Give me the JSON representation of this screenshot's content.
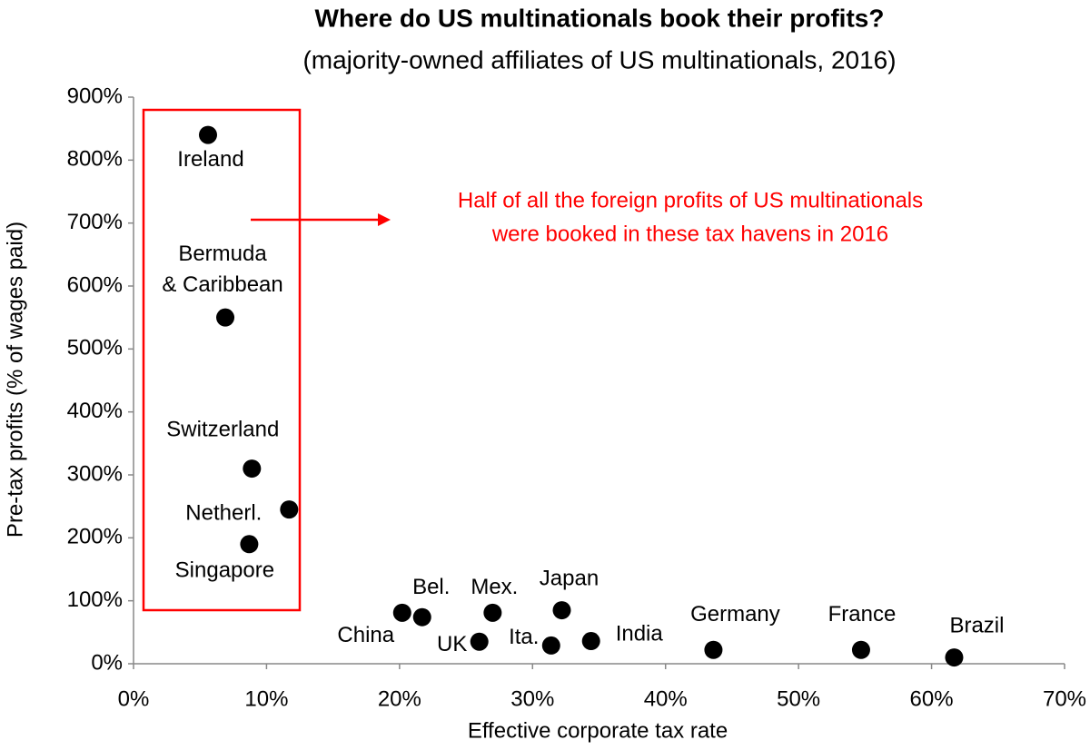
{
  "chart_data": {
    "type": "scatter",
    "title": "Where do US multinationals book their profits?",
    "subtitle": "(majority-owned affiliates of US multinationals, 2016)",
    "xlabel": "Effective corporate tax rate",
    "ylabel": "Pre-tax profits (% of wages paid)",
    "annotation": [
      "Half of all the foreign profits of US multinationals",
      "were booked in these tax havens in 2016"
    ],
    "annotation_color": "#ff0000",
    "color": "#000000",
    "xlim": [
      0,
      70
    ],
    "xticks": [
      {
        "value": 0,
        "label": "0%"
      },
      {
        "value": 10,
        "label": "10%"
      },
      {
        "value": 20,
        "label": "20%"
      },
      {
        "value": 30,
        "label": "30%"
      },
      {
        "value": 40,
        "label": "40%"
      },
      {
        "value": 50,
        "label": "50%"
      },
      {
        "value": 60,
        "label": "60%"
      },
      {
        "value": 70,
        "label": "70%"
      }
    ],
    "ylim": [
      0,
      900
    ],
    "yticks": [
      {
        "value": 0,
        "label": "0%"
      },
      {
        "value": 100,
        "label": "100%"
      },
      {
        "value": 200,
        "label": "200%"
      },
      {
        "value": 300,
        "label": "300%"
      },
      {
        "value": 400,
        "label": "400%"
      },
      {
        "value": 500,
        "label": "500%"
      },
      {
        "value": 600,
        "label": "600%"
      },
      {
        "value": 700,
        "label": "700%"
      },
      {
        "value": 800,
        "label": "800%"
      },
      {
        "value": 900,
        "label": "900%"
      }
    ],
    "grid": false,
    "points": [
      {
        "label": [
          "Ireland"
        ],
        "x": 5.6,
        "y": 840
      },
      {
        "label": [
          "Bermuda",
          "& Caribbean"
        ],
        "x": 6.9,
        "y": 550
      },
      {
        "label": [
          "Switzerland"
        ],
        "x": 8.9,
        "y": 310
      },
      {
        "label": [
          "Netherl."
        ],
        "x": 11.7,
        "y": 245
      },
      {
        "label": [
          "Singapore"
        ],
        "x": 8.7,
        "y": 190
      },
      {
        "label": [
          "China"
        ],
        "x": 20.2,
        "y": 81
      },
      {
        "label": [
          "Bel."
        ],
        "x": 21.7,
        "y": 74
      },
      {
        "label": [
          "Mex."
        ],
        "x": 27.0,
        "y": 81
      },
      {
        "label": [
          "UK"
        ],
        "x": 26.0,
        "y": 35
      },
      {
        "label": [
          "Ita."
        ],
        "x": 31.4,
        "y": 29
      },
      {
        "label": [
          "Japan"
        ],
        "x": 32.2,
        "y": 85
      },
      {
        "label": [
          "India"
        ],
        "x": 34.4,
        "y": 36
      },
      {
        "label": [
          "Germany"
        ],
        "x": 43.6,
        "y": 22
      },
      {
        "label": [
          "France"
        ],
        "x": 54.7,
        "y": 22
      },
      {
        "label": [
          "Brazil"
        ],
        "x": 61.7,
        "y": 10
      }
    ]
  }
}
